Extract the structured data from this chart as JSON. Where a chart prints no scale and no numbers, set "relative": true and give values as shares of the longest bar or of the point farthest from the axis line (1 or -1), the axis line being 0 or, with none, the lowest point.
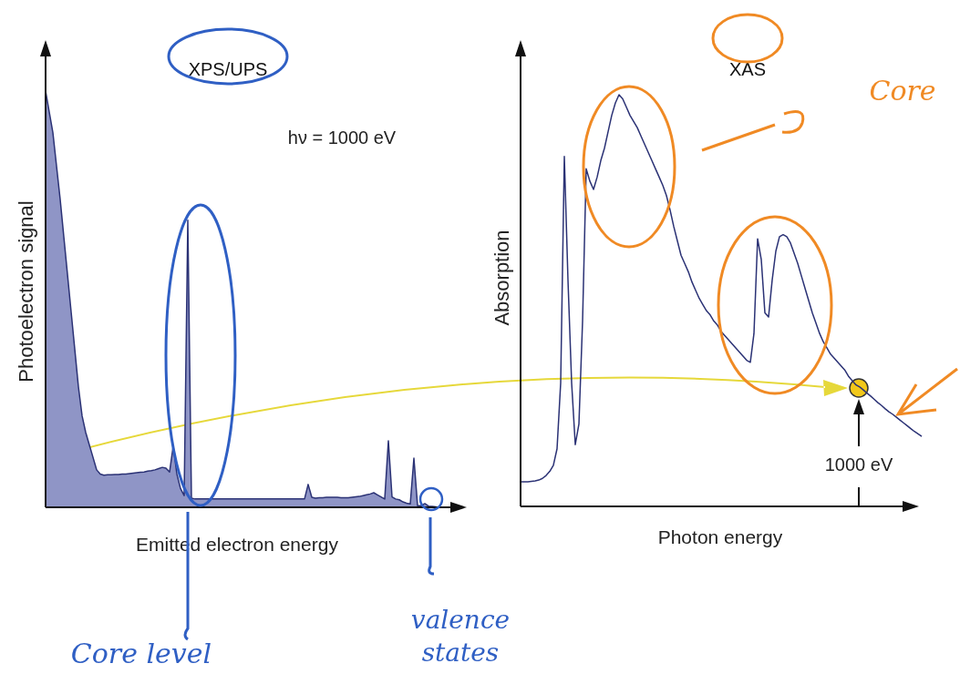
{
  "chart_data": [
    {
      "type": "area",
      "title": "XPS/UPS",
      "xlabel": "Emitted electron energy",
      "ylabel": "Photoelectron signal",
      "relative": true,
      "annotations": [
        "hν = 1000 eV",
        "Core level",
        "valence states"
      ],
      "categories": [
        null,
        null,
        null,
        null,
        null,
        null,
        null,
        null,
        null,
        null,
        null,
        null,
        null,
        null,
        null,
        null,
        null,
        null,
        null,
        null,
        null,
        null,
        null,
        null,
        null,
        null,
        null,
        null,
        null,
        null,
        null,
        null,
        null,
        null,
        null,
        null,
        null,
        null,
        null,
        null,
        null,
        null,
        null,
        null,
        null,
        null,
        null,
        null,
        null,
        null,
        null,
        null,
        null,
        null,
        null,
        null,
        null,
        null,
        null,
        null,
        null,
        null,
        null,
        null,
        null,
        null,
        null,
        null,
        null,
        null,
        null,
        null,
        null,
        null,
        null,
        null,
        null,
        null,
        null,
        null,
        null,
        null,
        null,
        null,
        null,
        null,
        null,
        null,
        null,
        null,
        null,
        null,
        null,
        null,
        null,
        null,
        null,
        null,
        null,
        null,
        null,
        null,
        null,
        null,
        null,
        null,
        null,
        null
      ],
      "series": [
        {
          "color": "#2b3275",
          "values": [
            1.0,
            0.95,
            0.9,
            0.82,
            0.74,
            0.65,
            0.56,
            0.47,
            0.38,
            0.29,
            0.22,
            0.18,
            0.15,
            0.12,
            0.09,
            0.08,
            0.077,
            0.078,
            0.078,
            0.079,
            0.079,
            0.08,
            0.08,
            0.081,
            0.082,
            0.083,
            0.084,
            0.085,
            0.087,
            0.088,
            0.09,
            0.093,
            0.096,
            0.094,
            0.085,
            0.147,
            0.08,
            0.045,
            0.028,
            0.69,
            0.022,
            0.02,
            0.02,
            0.02,
            0.02,
            0.02,
            0.02,
            0.02,
            0.02,
            0.02,
            0.02,
            0.02,
            0.02,
            0.02,
            0.02,
            0.02,
            0.02,
            0.02,
            0.02,
            0.02,
            0.02,
            0.02,
            0.02,
            0.02,
            0.02,
            0.02,
            0.02,
            0.02,
            0.02,
            0.02,
            0.02,
            0.02,
            0.055,
            0.024,
            0.022,
            0.023,
            0.023,
            0.024,
            0.024,
            0.024,
            0.024,
            0.023,
            0.023,
            0.023,
            0.024,
            0.025,
            0.026,
            0.028,
            0.03,
            0.032,
            0.035,
            0.03,
            0.025,
            0.02,
            0.16,
            0.025,
            0.02,
            0.018,
            0.013,
            0.01,
            0.008,
            0.118,
            0.004,
            0.004,
            0.009,
            0.003,
            0.002,
            0.001
          ]
        }
      ]
    },
    {
      "type": "line",
      "title": "XAS",
      "xlabel": "Photon energy",
      "ylabel": "Absorption",
      "relative": true,
      "annotations": [
        "Core",
        "1000 eV"
      ],
      "categories": [
        null,
        null,
        null,
        null,
        null,
        null,
        null,
        null,
        null,
        null,
        null,
        null,
        null,
        null,
        null,
        null,
        null,
        null,
        null,
        null,
        null,
        null,
        null,
        null,
        null,
        null,
        null,
        null,
        null,
        null,
        null,
        null,
        null,
        null,
        null,
        null,
        null,
        null,
        null,
        null,
        null,
        null,
        null,
        null,
        null,
        null,
        null,
        null,
        null,
        null,
        null,
        null,
        null,
        null,
        null,
        null,
        null,
        null,
        null,
        null,
        null,
        null,
        null,
        null,
        null,
        null,
        null,
        null,
        null,
        null,
        null,
        null,
        null,
        null,
        null,
        null,
        null,
        null,
        null,
        null,
        null,
        null,
        null,
        null,
        null,
        null,
        null,
        null,
        null,
        null,
        null,
        null,
        null,
        null,
        null,
        null,
        null,
        null,
        null,
        null,
        null,
        null,
        null,
        null,
        null,
        null,
        null,
        null,
        null,
        null,
        null
      ],
      "series": [
        {
          "color": "#2b3275",
          "values": [
            0.06,
            0.06,
            0.06,
            0.061,
            0.062,
            0.064,
            0.068,
            0.075,
            0.085,
            0.1,
            0.14,
            0.3,
            0.85,
            0.55,
            0.3,
            0.15,
            0.2,
            0.45,
            0.82,
            0.79,
            0.77,
            0.8,
            0.84,
            0.87,
            0.91,
            0.95,
            0.98,
            1.0,
            0.99,
            0.97,
            0.95,
            0.935,
            0.92,
            0.9,
            0.88,
            0.86,
            0.84,
            0.82,
            0.8,
            0.78,
            0.755,
            0.72,
            0.68,
            0.645,
            0.61,
            0.59,
            0.57,
            0.545,
            0.525,
            0.505,
            0.49,
            0.475,
            0.465,
            0.45,
            0.44,
            0.425,
            0.415,
            0.405,
            0.395,
            0.385,
            0.375,
            0.365,
            0.355,
            0.35,
            0.42,
            0.65,
            0.6,
            0.47,
            0.46,
            0.55,
            0.62,
            0.655,
            0.66,
            0.655,
            0.64,
            0.615,
            0.59,
            0.56,
            0.53,
            0.5,
            0.47,
            0.445,
            0.42,
            0.4,
            0.385,
            0.37,
            0.36,
            0.35,
            0.34,
            0.33,
            0.315,
            0.305,
            0.295,
            0.29,
            0.283,
            0.275,
            0.268,
            0.26,
            0.252,
            0.245,
            0.237,
            0.23,
            0.224,
            0.217,
            0.21,
            0.203,
            0.196,
            0.189,
            0.182,
            0.176,
            0.17
          ]
        }
      ]
    }
  ]
}
